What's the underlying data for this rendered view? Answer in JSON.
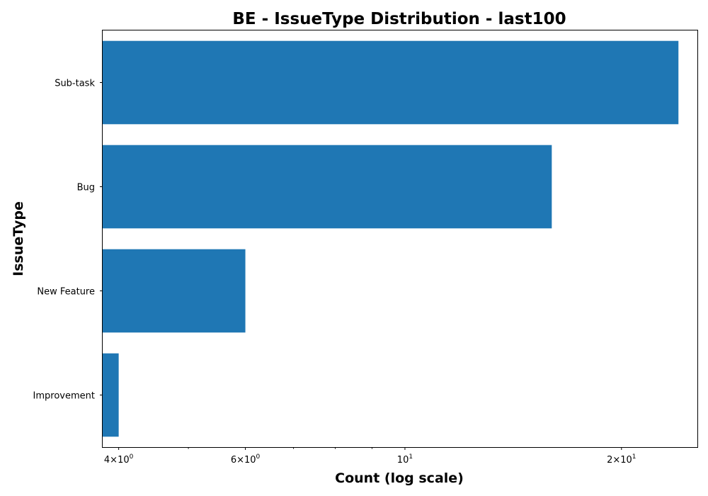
{
  "chart_data": {
    "type": "bar",
    "orientation": "horizontal",
    "title": "BE - IssueType Distribution - last100",
    "xlabel": "Count (log scale)",
    "ylabel": "IssueType",
    "x_scale": "log",
    "xlim": [
      3.8,
      25.5
    ],
    "categories": [
      "Sub-task",
      "Bug",
      "New Feature",
      "Improvement"
    ],
    "values": [
      24,
      16,
      6,
      4
    ],
    "bar_color": "#1f77b4",
    "x_major_ticks": [
      {
        "value": 4,
        "mantissa": "4",
        "exponent": "0"
      },
      {
        "value": 6,
        "mantissa": "6",
        "exponent": "0"
      },
      {
        "value": 10,
        "mantissa": "",
        "exponent": "1"
      },
      {
        "value": 20,
        "mantissa": "2",
        "exponent": "1"
      }
    ],
    "x_minor_ticks": [
      5,
      7,
      8,
      9
    ],
    "grid": false,
    "legend": "none"
  }
}
